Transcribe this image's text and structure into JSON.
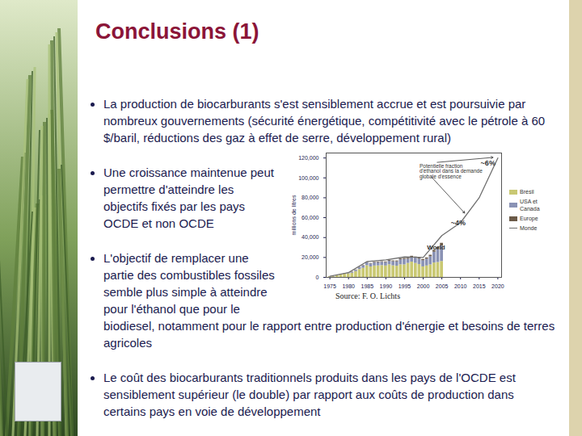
{
  "title": "Conclusions (1)",
  "bullets": [
    "La production de biocarburants s'est sensiblement accrue et est poursuivie par nombreux gouvernements (sécurité énergétique, compétitivité avec le pétrole à 60 $/baril, réductions des gaz à effet de serre, développement rural)",
    "Une croissance maintenue peut permettre d'atteindre les objectifs fixés par les pays OCDE et non OCDE",
    "L'objectif de remplacer une partie des combustibles fossiles semble plus simple à atteindre pour l'éthanol que pour le biodiesel, notamment pour le rapport entre production d'énergie et besoins de terres agricoles",
    "Le coût des biocarburants traditionnels produits dans les pays de l'OCDE est sensiblement supérieur (le double) par rapport aux coûts de production dans certains pays en voie de développement"
  ],
  "source": "Source: F. O. Lichts",
  "chart_data": {
    "type": "bar",
    "stacked": true,
    "ylabel": "millions de litres",
    "x": [
      1975,
      1976,
      1977,
      1978,
      1979,
      1980,
      1981,
      1982,
      1983,
      1984,
      1985,
      1986,
      1987,
      1988,
      1989,
      1990,
      1991,
      1992,
      1993,
      1994,
      1995,
      1996,
      1997,
      1998,
      1999,
      2000,
      2001,
      2002,
      2003,
      2004,
      2005
    ],
    "series": [
      {
        "name": "Brésil",
        "color": "#c9c872",
        "values": [
          500,
          600,
          1500,
          2500,
          3500,
          3700,
          4200,
          5800,
          7900,
          9200,
          11800,
          10500,
          11500,
          11600,
          11900,
          11500,
          12700,
          11700,
          11300,
          12700,
          12600,
          14100,
          15400,
          14100,
          12900,
          10600,
          11500,
          12600,
          14500,
          15000,
          16000
        ]
      },
      {
        "name": "USA et Canada",
        "color": "#8a92b4",
        "values": [
          0,
          0,
          0,
          0,
          100,
          500,
          800,
          1300,
          1800,
          2200,
          2800,
          3000,
          3100,
          3200,
          3300,
          3400,
          3500,
          4100,
          4400,
          5000,
          5500,
          4200,
          4800,
          5300,
          5600,
          6200,
          6800,
          8200,
          10900,
          13000,
          15500
        ]
      },
      {
        "name": "Europe",
        "color": "#6b5a48",
        "values": [
          200,
          200,
          250,
          250,
          300,
          300,
          350,
          400,
          400,
          450,
          500,
          500,
          550,
          600,
          600,
          700,
          750,
          800,
          850,
          900,
          1000,
          1000,
          1050,
          1100,
          1100,
          1200,
          1300,
          1500,
          1800,
          2200,
          2800
        ]
      },
      {
        "name": "Monde",
        "type": "line",
        "color": "#6f6f6f",
        "x": [
          1975,
          1980,
          1985,
          1990,
          1995,
          2000,
          2005,
          2010,
          2015,
          2020
        ],
        "values": [
          1200,
          4800,
          16000,
          17500,
          20500,
          20000,
          42000,
          55000,
          80000,
          120000
        ]
      }
    ],
    "xlim": [
      1974,
      2021
    ],
    "xticks": [
      1975,
      1980,
      1985,
      1990,
      1995,
      2000,
      2005,
      2010,
      2015,
      2020
    ],
    "ylim": [
      0,
      125000
    ],
    "yticks": [
      0,
      {
        "value": 20000,
        "label": "20,000"
      },
      {
        "value": 40000,
        "label": "40,000"
      },
      {
        "value": 60000,
        "label": "60,000"
      },
      {
        "value": 80000,
        "label": "80,000"
      },
      {
        "value": 100000,
        "label": "100,000"
      },
      {
        "value": 120000,
        "label": "120,000"
      }
    ],
    "annotations": [
      {
        "text": "World",
        "x": 2001,
        "y": 30000
      },
      {
        "text": "~4%",
        "x": 2012,
        "y": 61000
      },
      {
        "text": "~6%",
        "x": 2020,
        "y": 121000
      },
      {
        "text": "Potentielle fraction d'éthanol dans la demande globale d'essence",
        "x": 1999,
        "y": 114000
      }
    ],
    "grid": false,
    "legend": "right"
  }
}
